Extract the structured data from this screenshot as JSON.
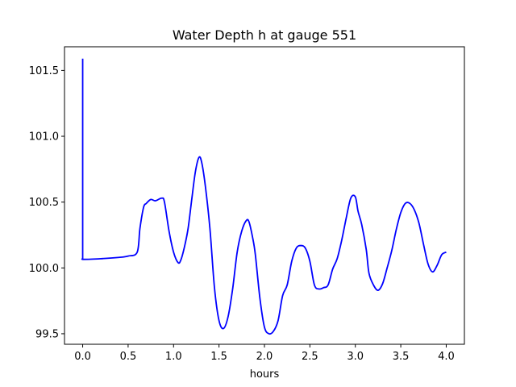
{
  "chart_data": {
    "type": "line",
    "title": "Water Depth h at gauge 551",
    "xlabel": "hours",
    "ylabel": "",
    "xlim": [
      -0.2,
      4.2
    ],
    "ylim": [
      99.42,
      101.68
    ],
    "xticks": [
      0.0,
      0.5,
      1.0,
      1.5,
      2.0,
      2.5,
      3.0,
      3.5,
      4.0
    ],
    "xtick_labels": [
      "0.0",
      "0.5",
      "1.0",
      "1.5",
      "2.0",
      "2.5",
      "3.0",
      "3.5",
      "4.0"
    ],
    "yticks": [
      99.5,
      100.0,
      100.5,
      101.0,
      101.5
    ],
    "ytick_labels": [
      "99.5",
      "100.0",
      "100.5",
      "101.0",
      "101.5"
    ],
    "grid": false,
    "series": [
      {
        "color": "#0000ff",
        "x": [
          0.0,
          0.0,
          0.01,
          0.2,
          0.4,
          0.5,
          0.6,
          0.63,
          0.67,
          0.7,
          0.75,
          0.8,
          0.87,
          0.9,
          0.95,
          1.0,
          1.05,
          1.08,
          1.12,
          1.16,
          1.2,
          1.24,
          1.28,
          1.31,
          1.35,
          1.4,
          1.45,
          1.5,
          1.55,
          1.6,
          1.65,
          1.7,
          1.75,
          1.8,
          1.83,
          1.87,
          1.9,
          1.95,
          2.0,
          2.05,
          2.1,
          2.15,
          2.2,
          2.25,
          2.3,
          2.35,
          2.4,
          2.45,
          2.5,
          2.55,
          2.6,
          2.65,
          2.7,
          2.75,
          2.8,
          2.85,
          2.9,
          2.95,
          3.0,
          3.03,
          3.07,
          3.12,
          3.15,
          3.2,
          3.25,
          3.3,
          3.35,
          3.4,
          3.45,
          3.5,
          3.55,
          3.6,
          3.65,
          3.7,
          3.75,
          3.8,
          3.85,
          3.9,
          3.95,
          4.0
        ],
        "values": [
          101.59,
          100.07,
          100.065,
          100.07,
          100.08,
          100.09,
          100.12,
          100.3,
          100.46,
          100.49,
          100.52,
          100.51,
          100.53,
          100.5,
          100.28,
          100.12,
          100.04,
          100.06,
          100.16,
          100.3,
          100.52,
          100.73,
          100.84,
          100.8,
          100.62,
          100.3,
          99.85,
          99.6,
          99.54,
          99.63,
          99.84,
          100.12,
          100.28,
          100.36,
          100.35,
          100.23,
          100.1,
          99.77,
          99.55,
          99.5,
          99.52,
          99.6,
          99.79,
          99.87,
          100.05,
          100.15,
          100.17,
          100.15,
          100.05,
          99.87,
          99.84,
          99.85,
          99.87,
          99.99,
          100.07,
          100.21,
          100.38,
          100.53,
          100.54,
          100.43,
          100.33,
          100.14,
          99.96,
          99.87,
          99.83,
          99.88,
          100.0,
          100.13,
          100.29,
          100.42,
          100.49,
          100.49,
          100.44,
          100.34,
          100.18,
          100.03,
          99.97,
          100.02,
          100.1,
          100.12
        ]
      }
    ]
  }
}
